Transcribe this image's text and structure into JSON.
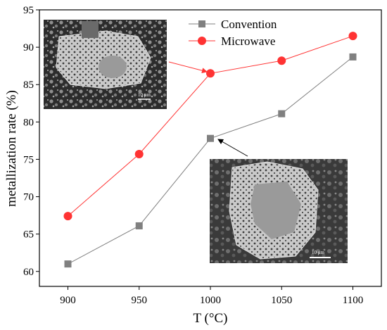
{
  "chart_data": {
    "type": "line",
    "xlabel": "T (°C)",
    "ylabel": "metallization rate (%)",
    "x": [
      900,
      950,
      1000,
      1050,
      1100
    ],
    "xlim": [
      880,
      1120
    ],
    "ylim": [
      58,
      95
    ],
    "xticks": [
      900,
      950,
      1000,
      1050,
      1100
    ],
    "yticks": [
      60,
      65,
      70,
      75,
      80,
      85,
      90,
      95
    ],
    "grid": false,
    "legend_position": "top-center",
    "series": [
      {
        "name": "Convention",
        "values": [
          61.0,
          66.1,
          77.8,
          81.1,
          88.7
        ],
        "color": "#808080",
        "marker": "square"
      },
      {
        "name": "Microwave",
        "values": [
          67.4,
          75.7,
          86.5,
          88.2,
          91.5
        ],
        "color": "#ff3333",
        "marker": "circle"
      }
    ],
    "insets": [
      {
        "name": "sem-micrograph-microwave",
        "scale_label": "10 μm",
        "points_to": {
          "series": "Microwave",
          "x": 1000
        },
        "arrow_color": "#ff3333"
      },
      {
        "name": "sem-micrograph-convention",
        "scale_label": "10 μm",
        "points_to": {
          "series": "Convention",
          "x": 1000
        },
        "arrow_color": "#000000"
      }
    ]
  }
}
